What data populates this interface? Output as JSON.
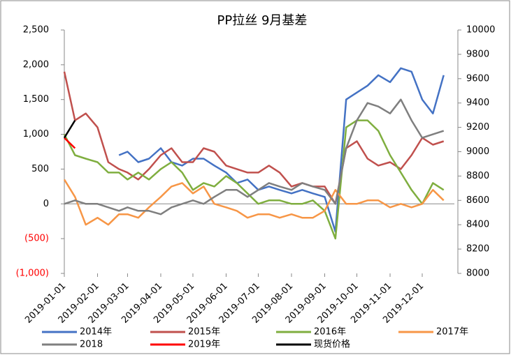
{
  "chart_data": {
    "type": "line",
    "title": "PP拉丝  9月基差",
    "x": [
      "2019-01-01",
      "2019-01-11",
      "2019-01-21",
      "2019-02-01",
      "2019-02-11",
      "2019-02-21",
      "2019-03-01",
      "2019-03-11",
      "2019-03-21",
      "2019-04-01",
      "2019-04-11",
      "2019-04-21",
      "2019-05-01",
      "2019-05-11",
      "2019-05-21",
      "2019-06-01",
      "2019-06-11",
      "2019-06-21",
      "2019-07-01",
      "2019-07-11",
      "2019-07-21",
      "2019-08-01",
      "2019-08-11",
      "2019-08-21",
      "2019-09-01",
      "2019-09-11",
      "2019-09-21",
      "2019-10-01",
      "2019-10-11",
      "2019-10-21",
      "2019-11-01",
      "2019-11-11",
      "2019-11-21",
      "2019-12-01",
      "2019-12-11",
      "2019-12-21"
    ],
    "xlim": [
      "2019-01-01",
      "2019-12-31"
    ],
    "xticks": [
      "2019-01-01",
      "2019-02-01",
      "2019-03-01",
      "2019-04-01",
      "2019-05-01",
      "2019-06-01",
      "2019-07-01",
      "2019-08-01",
      "2019-09-01",
      "2019-10-01",
      "2019-11-01",
      "2019-12-01"
    ],
    "ylim": [
      -1000,
      2500
    ],
    "yticks": [
      {
        "value": -1000,
        "label": "(1,000)"
      },
      {
        "value": -500,
        "label": "(500)"
      },
      0,
      500,
      {
        "value": 1000,
        "label": "1,000"
      },
      {
        "value": 1500,
        "label": "1,500"
      },
      {
        "value": 2000,
        "label": "2,000"
      },
      {
        "value": 2500,
        "label": "2,500"
      }
    ],
    "y2lim": [
      8000,
      10000
    ],
    "y2ticks": [
      8000,
      8200,
      8400,
      8600,
      8800,
      9000,
      9200,
      9400,
      9600,
      9800,
      10000
    ],
    "series": [
      {
        "name": "2014年",
        "color": "#4472c4",
        "values": [
          null,
          null,
          null,
          null,
          null,
          700,
          750,
          600,
          650,
          800,
          600,
          550,
          650,
          650,
          550,
          450,
          300,
          350,
          200,
          250,
          200,
          150,
          200,
          150,
          100,
          -400,
          1500,
          1600,
          1700,
          1850,
          1750,
          1950,
          1900,
          1500,
          1300,
          1850
        ]
      },
      {
        "name": "2015年",
        "color": "#c0504d",
        "values": [
          1900,
          1200,
          1300,
          1100,
          600,
          500,
          450,
          350,
          500,
          700,
          800,
          600,
          600,
          800,
          750,
          550,
          500,
          450,
          450,
          550,
          450,
          250,
          300,
          250,
          250,
          0,
          800,
          900,
          650,
          550,
          600,
          500,
          700,
          950,
          850,
          900
        ]
      },
      {
        "name": "2016年",
        "color": "#7fae3f",
        "values": [
          1000,
          700,
          650,
          600,
          450,
          450,
          350,
          450,
          350,
          500,
          600,
          450,
          200,
          300,
          250,
          400,
          300,
          150,
          0,
          50,
          50,
          0,
          0,
          50,
          -100,
          -500,
          1100,
          1200,
          1200,
          1050,
          700,
          450,
          200,
          0,
          300,
          200
        ]
      },
      {
        "name": "2017年",
        "color": "#f79646",
        "values": [
          350,
          100,
          -300,
          -200,
          -300,
          -150,
          -150,
          -200,
          -50,
          100,
          250,
          300,
          150,
          250,
          0,
          -50,
          -100,
          -200,
          -150,
          -150,
          -200,
          -150,
          -200,
          -200,
          -100,
          200,
          0,
          0,
          50,
          50,
          -50,
          0,
          -50,
          0,
          200,
          50
        ]
      },
      {
        "name": "2018",
        "color": "#7f7f7f",
        "values": [
          0,
          50,
          0,
          0,
          -50,
          -100,
          -50,
          -100,
          -100,
          -150,
          -50,
          0,
          50,
          0,
          100,
          200,
          200,
          100,
          200,
          300,
          250,
          200,
          300,
          250,
          200,
          0,
          800,
          1200,
          1450,
          1400,
          1300,
          1500,
          1200,
          950,
          1000,
          1050
        ]
      },
      {
        "name": "2019年",
        "color": "#ff0000",
        "values": [
          950,
          800,
          null,
          null,
          null,
          null,
          null,
          null,
          null,
          null,
          null,
          null,
          null,
          null,
          null,
          null,
          null,
          null,
          null,
          null,
          null,
          null,
          null,
          null,
          null,
          null,
          null,
          null,
          null,
          null,
          null,
          null,
          null,
          null,
          null,
          null
        ]
      },
      {
        "name": "现货价格",
        "color": "#000000",
        "values": [
          950,
          1200,
          null,
          null,
          null,
          null,
          null,
          null,
          null,
          null,
          null,
          null,
          null,
          null,
          null,
          null,
          null,
          null,
          null,
          null,
          null,
          null,
          null,
          null,
          null,
          null,
          null,
          null,
          null,
          null,
          null,
          null,
          null,
          null,
          null,
          null
        ]
      }
    ]
  }
}
